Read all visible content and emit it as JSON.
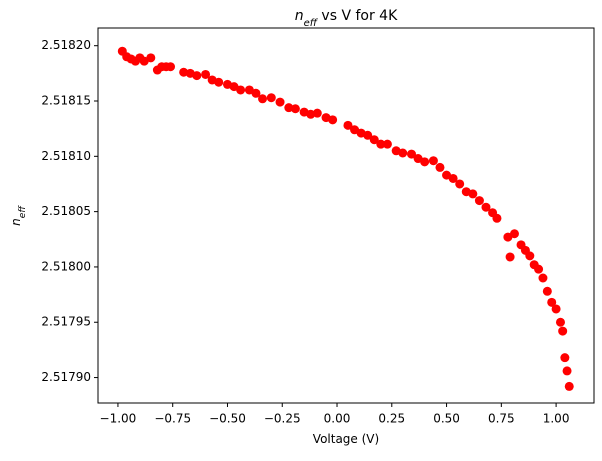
{
  "chart_data": {
    "type": "scatter",
    "title": {
      "symbol": "n",
      "subscript": "eff",
      "text": " vs V for 4K"
    },
    "x_label": "Voltage (V)",
    "y_label": {
      "symbol": "n",
      "subscript": "eff"
    },
    "color": "#ff0000",
    "x": [
      -0.98,
      -0.96,
      -0.94,
      -0.92,
      -0.9,
      -0.88,
      -0.85,
      -0.82,
      -0.8,
      -0.78,
      -0.76,
      -0.7,
      -0.67,
      -0.64,
      -0.6,
      -0.57,
      -0.54,
      -0.5,
      -0.47,
      -0.44,
      -0.4,
      -0.37,
      -0.34,
      -0.3,
      -0.26,
      -0.22,
      -0.19,
      -0.15,
      -0.12,
      -0.09,
      -0.05,
      -0.02,
      0.05,
      0.08,
      0.11,
      0.14,
      0.17,
      0.2,
      0.23,
      0.27,
      0.3,
      0.34,
      0.37,
      0.4,
      0.44,
      0.47,
      0.5,
      0.53,
      0.56,
      0.59,
      0.62,
      0.65,
      0.68,
      0.71,
      0.73,
      0.78,
      0.79,
      0.81,
      0.84,
      0.86,
      0.88,
      0.9,
      0.92,
      0.94,
      0.96,
      0.98,
      1.0,
      1.02,
      1.03,
      1.04,
      1.05,
      1.06
    ],
    "values": [
      2.518195,
      2.51819,
      2.518188,
      2.518186,
      2.518189,
      2.518186,
      2.518189,
      2.518178,
      2.518181,
      2.518181,
      2.518181,
      2.518176,
      2.518175,
      2.518173,
      2.518174,
      2.518169,
      2.518167,
      2.518165,
      2.518163,
      2.51816,
      2.51816,
      2.518157,
      2.518152,
      2.518153,
      2.518149,
      2.518144,
      2.518143,
      2.51814,
      2.518138,
      2.518139,
      2.518135,
      2.518133,
      2.518128,
      2.518124,
      2.518121,
      2.518119,
      2.518115,
      2.518111,
      2.518111,
      2.518105,
      2.518103,
      2.518102,
      2.518098,
      2.518095,
      2.518096,
      2.51809,
      2.518083,
      2.51808,
      2.518075,
      2.518068,
      2.518066,
      2.51806,
      2.518054,
      2.518049,
      2.518044,
      2.518027,
      2.518009,
      2.51803,
      2.51802,
      2.518015,
      2.51801,
      2.518002,
      2.517998,
      2.51799,
      2.517978,
      2.517968,
      2.517962,
      2.51795,
      2.517942,
      2.517918,
      2.517906,
      2.517892
    ],
    "xlim": [
      -1.091,
      1.173
    ],
    "ylim": [
      2.517877,
      2.518216
    ],
    "xticks": [
      {
        "value": -1,
        "label": "−1.00"
      },
      {
        "value": -0.75,
        "label": "−0.75"
      },
      {
        "value": -0.5,
        "label": "−0.50"
      },
      {
        "value": -0.25,
        "label": "−0.25"
      },
      {
        "value": 0,
        "label": "0.00"
      },
      {
        "value": 0.25,
        "label": "0.25"
      },
      {
        "value": 0.5,
        "label": "0.50"
      },
      {
        "value": 0.75,
        "label": "0.75"
      },
      {
        "value": 1,
        "label": "1.00"
      }
    ],
    "yticks": [
      {
        "value": 2.5179,
        "label": "2.51790"
      },
      {
        "value": 2.51795,
        "label": "2.51795"
      },
      {
        "value": 2.518,
        "label": "2.51800"
      },
      {
        "value": 2.51805,
        "label": "2.51805"
      },
      {
        "value": 2.5181,
        "label": "2.51810"
      },
      {
        "value": 2.51815,
        "label": "2.51815"
      },
      {
        "value": 2.5182,
        "label": "2.51820"
      }
    ],
    "grid": false
  }
}
